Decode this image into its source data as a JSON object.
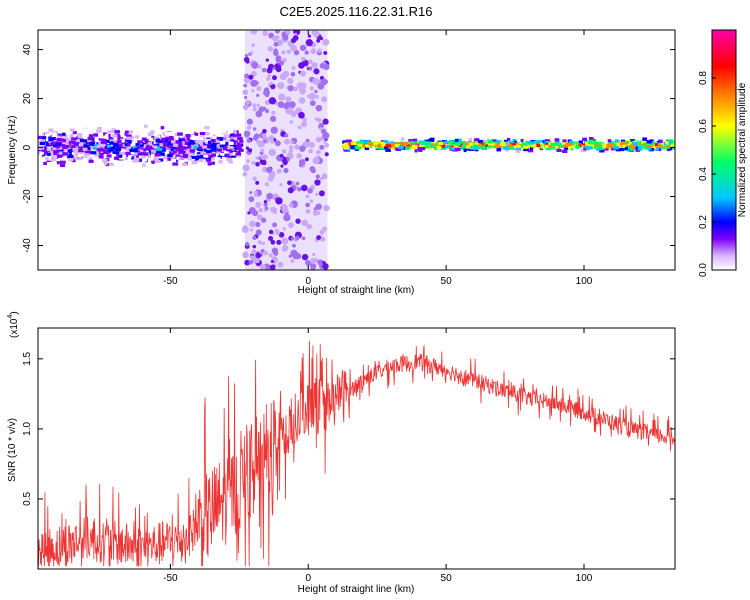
{
  "title": "C2E5.2025.116.22.31.R16",
  "colors": {
    "snr_line": "#ee3333",
    "colormap": [
      "#ffffff",
      "#d9b3ff",
      "#7b00ff",
      "#0000ff",
      "#00c8ff",
      "#00ff66",
      "#ffff00",
      "#ff8800",
      "#ff0000",
      "#ff00aa"
    ]
  },
  "chart_data": [
    {
      "type": "heatmap",
      "name": "spectrogram",
      "xlabel": "Height of straight line (km)",
      "ylabel": "Frequency (Hz)",
      "xlim": [
        -98,
        133
      ],
      "ylim": [
        -50,
        48
      ],
      "xticks": [
        -50,
        0,
        50,
        100
      ],
      "yticks": [
        -40,
        -20,
        0,
        20,
        40
      ],
      "colorbar": {
        "label": "Normalized spectral amplitude",
        "range": [
          0,
          1
        ],
        "ticks": [
          "0.0",
          "0.2",
          "0.4",
          "0.6",
          "0.8"
        ]
      },
      "regions": [
        {
          "x": [
            -98,
            -25
          ],
          "center_hz": 0,
          "spread_hz": 10,
          "level": 0.25
        },
        {
          "x": [
            -23,
            7
          ],
          "center_hz": 0,
          "spread_hz": 48,
          "level": 0.05
        },
        {
          "x": [
            12,
            133
          ],
          "center_hz": 1,
          "spread_hz": 3,
          "level": 0.8
        }
      ]
    },
    {
      "type": "line",
      "name": "snr",
      "xlabel": "Height of straight line (km)",
      "ylabel": "SNR (10 * v/v)",
      "yscale_label": "(x10",
      "yscale_exp": "4",
      "xlim": [
        -98,
        133
      ],
      "ylim": [
        0,
        1.72
      ],
      "xticks": [
        -50,
        0,
        50,
        100
      ],
      "yticks": [
        "0.5",
        "1.0",
        "1.5"
      ],
      "envelope": {
        "x": [
          -98,
          -80,
          -60,
          -45,
          -35,
          -25,
          -15,
          -5,
          0,
          10,
          20,
          30,
          40,
          50,
          60,
          70,
          80,
          90,
          100,
          110,
          120,
          133
        ],
        "y": [
          0.12,
          0.22,
          0.15,
          0.22,
          0.4,
          0.6,
          0.85,
          1.05,
          1.15,
          1.2,
          1.35,
          1.45,
          1.48,
          1.42,
          1.35,
          1.28,
          1.22,
          1.18,
          1.12,
          1.05,
          0.98,
          0.93
        ]
      }
    }
  ]
}
